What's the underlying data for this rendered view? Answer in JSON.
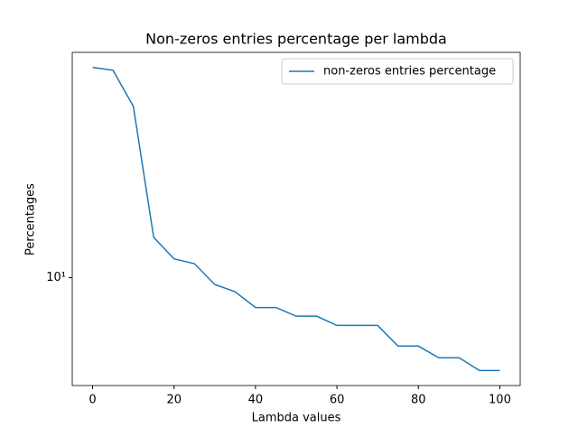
{
  "chart_data": {
    "type": "line",
    "title": "Non-zeros entries percentage per lambda",
    "xlabel": "Lambda values",
    "ylabel": "Percentages",
    "x": [
      0,
      5,
      10,
      15,
      20,
      25,
      30,
      35,
      40,
      45,
      50,
      55,
      60,
      65,
      70,
      75,
      80,
      85,
      90,
      95,
      100
    ],
    "series": [
      {
        "name": "non-zeros entries percentage",
        "color": "#1f77b4",
        "values": [
          48,
          47,
          35.9,
          13.5,
          11.5,
          11.1,
          9.5,
          9.0,
          8.0,
          8.0,
          7.5,
          7.5,
          7.0,
          7.0,
          7.0,
          6.0,
          6.0,
          5.5,
          5.5,
          5.0,
          5.0
        ]
      }
    ],
    "xlim": [
      -5,
      105
    ],
    "xticks": [
      0,
      20,
      40,
      60,
      80,
      100
    ],
    "ylim": [
      4.47,
      53.7
    ],
    "yticks": [
      {
        "value": 10,
        "label": "10¹"
      }
    ],
    "yscale": "log",
    "legend": "upper right"
  }
}
